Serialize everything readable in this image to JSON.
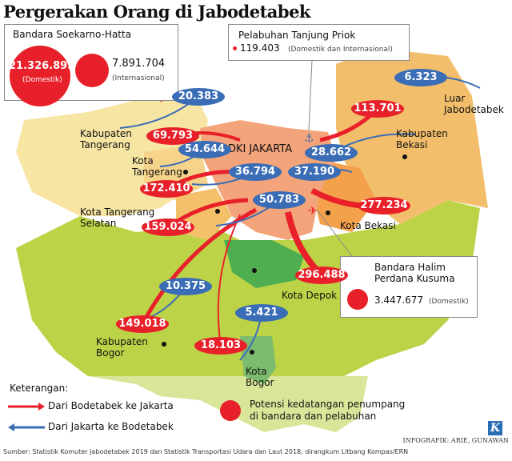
{
  "title": "Pergerakan Orang di Jabodetabek",
  "colors": {
    "to_jakarta": "#e8202a",
    "from_jakarta": "#3a6db5"
  },
  "soekarno_hatta": {
    "name": "Bandara Soekarno-Hatta",
    "domestic_value": "21.326.895",
    "domestic_label": "(Domestik)",
    "intl_value": "7.891.704",
    "intl_label": "(Internasional)"
  },
  "tanjung_priok": {
    "name": "Pelabuhan Tanjung Priok",
    "value": "119.403",
    "label": "(Domestik dan Internasional)"
  },
  "halim": {
    "name_line1": "Bandara Halim",
    "name_line2": "Perdana Kusuma",
    "value": "3.447.677",
    "label": "(Domestik)"
  },
  "places": [
    {
      "line1": "Kabupaten",
      "line2": "Tangerang"
    },
    {
      "line1": "Kota",
      "line2": "Tangerang"
    },
    {
      "line1": "DKI JAKARTA",
      "line2": ""
    },
    {
      "line1": "Kabupaten",
      "line2": "Bekasi"
    },
    {
      "line1": "Luar",
      "line2": "Jabodetabek"
    },
    {
      "line1": "Kota Tangerang",
      "line2": "Selatan"
    },
    {
      "line1": "Kota Bekasi",
      "line2": ""
    },
    {
      "line1": "Kota Depok",
      "line2": ""
    },
    {
      "line1": "Kabupaten",
      "line2": "Bogor"
    },
    {
      "line1": "Kota",
      "line2": "Bogor"
    }
  ],
  "to_jakarta": [
    "69.793",
    "113.701",
    "172.410",
    "159.024",
    "277.234",
    "296.488",
    "149.018",
    "18.103"
  ],
  "from_jakarta": [
    "20.383",
    "6.323",
    "54.644",
    "28.662",
    "36.794",
    "37.190",
    "50.783",
    "10.375",
    "5.421"
  ],
  "legend": {
    "title": "Keterangan:",
    "red_arrow": "Dari Bodetabek ke Jakarta",
    "blue_arrow": "Dari Jakarta ke Bodetabek",
    "circle_line1": "Potensi kedatangan penumpang",
    "circle_line2": "di bandara dan pelabuhan"
  },
  "source": "Sumber: Statistik Komuter Jabodetabek 2019 dan Statistik Transportasi Udara dan Laut 2018, dirangkum Litbang Kompas/ERN",
  "credit": "INFOGRAFIK: ARIE, GUNAWAN",
  "logo": "K"
}
